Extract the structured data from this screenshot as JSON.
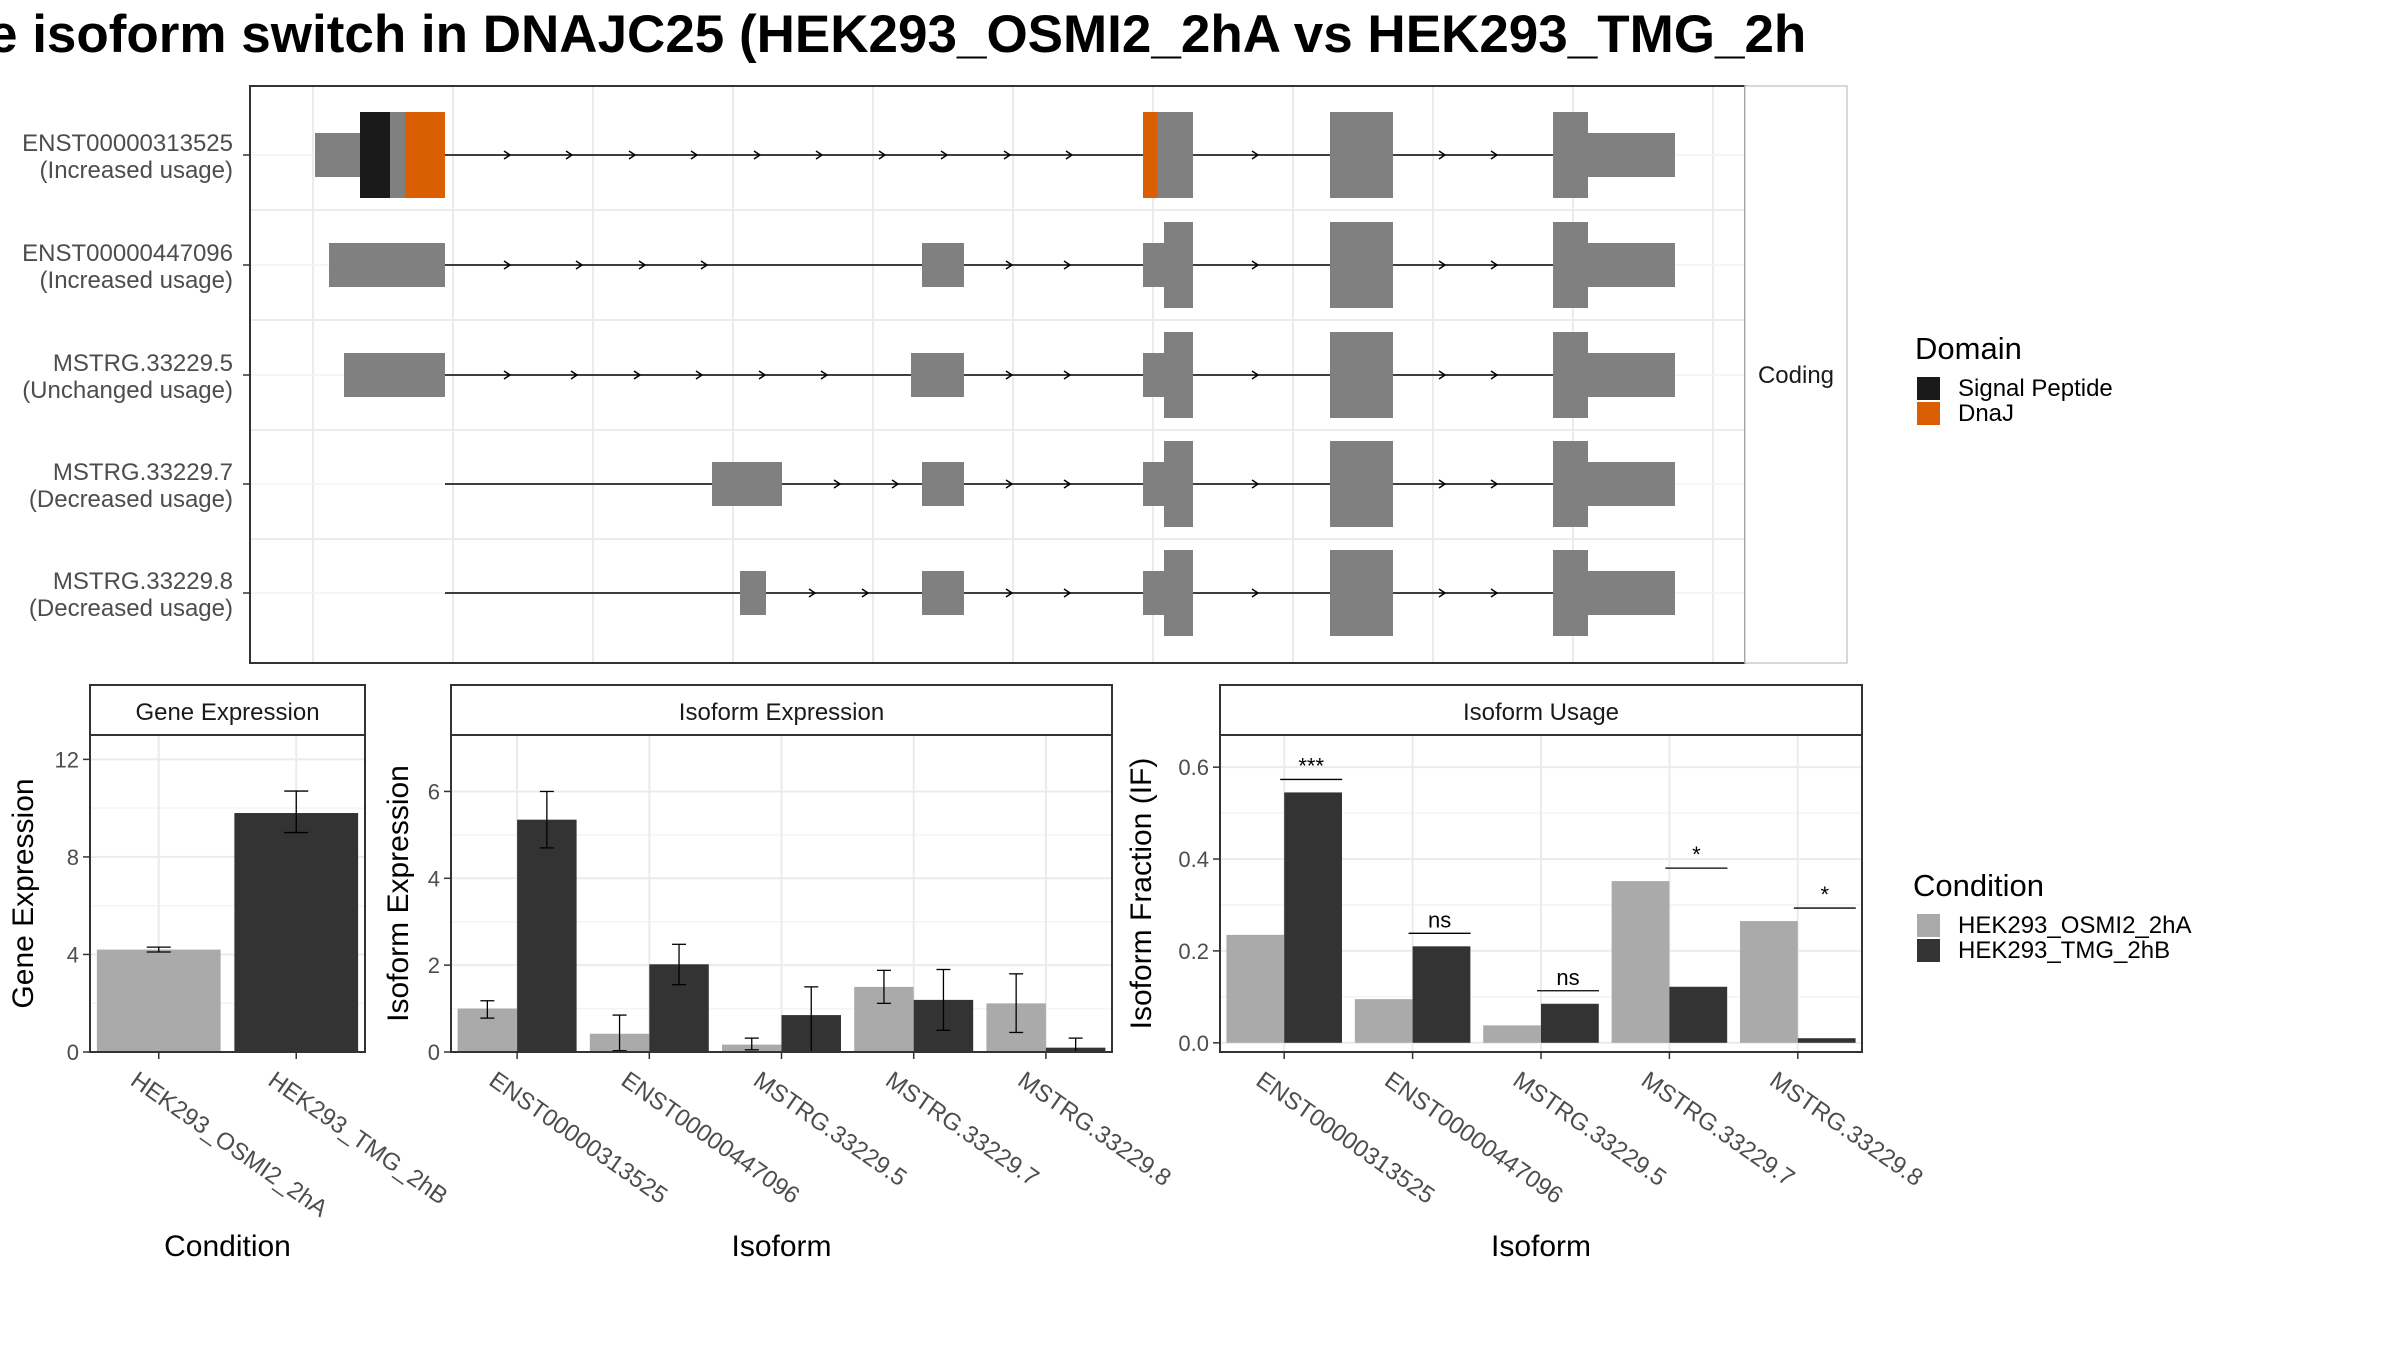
{
  "title": "e isoform switch in DNAJC25 (HEK293_OSMI2_2hA vs HEK293_TMG_2h",
  "colors": {
    "exon": "#808080",
    "signal_peptide": "#1a1a1a",
    "dnaj": "#d95f02",
    "condA": "#aaaaaa",
    "condB": "#333333",
    "grid": "#ebebeb",
    "strip": "#ffffff",
    "panel_border": "#333333"
  },
  "structure": {
    "facet_label": "Coding",
    "isoforms": [
      {
        "id": "ENST00000313525",
        "note": "(Increased usage)"
      },
      {
        "id": "ENST00000447096",
        "note": "(Increased usage)"
      },
      {
        "id": "MSTRG.33229.5",
        "note": "(Unchanged usage)"
      },
      {
        "id": "MSTRG.33229.7",
        "note": "(Decreased usage)"
      },
      {
        "id": "MSTRG.33229.8",
        "note": "(Decreased usage)"
      }
    ]
  },
  "legends": {
    "domain": {
      "title": "Domain",
      "items": [
        "Signal Peptide",
        "DnaJ"
      ]
    },
    "condition": {
      "title": "Condition",
      "items": [
        "HEK293_OSMI2_2hA",
        "HEK293_TMG_2hB"
      ]
    }
  },
  "chart_data": [
    {
      "type": "bar",
      "title": "Gene Expression",
      "xlabel": "Condition",
      "ylabel": "Gene Expression",
      "categories": [
        "HEK293_OSMI2_2hA",
        "HEK293_TMG_2hB"
      ],
      "values": [
        4.2,
        9.8
      ],
      "errors": [
        [
          4.1,
          4.3
        ],
        [
          9.0,
          10.7
        ]
      ],
      "ylim": [
        0,
        13
      ],
      "yticks": [
        0,
        4,
        8,
        12
      ]
    },
    {
      "type": "bar",
      "title": "Isoform Expression",
      "xlabel": "Isoform",
      "ylabel": "Isoform Expression",
      "categories": [
        "ENST00000313525",
        "ENST00000447096",
        "MSTRG.33229.5",
        "MSTRG.33229.7",
        "MSTRG.33229.8"
      ],
      "series": [
        {
          "name": "HEK293_OSMI2_2hA",
          "values": [
            1.0,
            0.42,
            0.17,
            1.5,
            1.12
          ],
          "errors": [
            [
              0.78,
              1.18
            ],
            [
              0.03,
              0.85
            ],
            [
              0.05,
              0.32
            ],
            [
              1.12,
              1.88
            ],
            [
              0.45,
              1.8
            ]
          ]
        },
        {
          "name": "HEK293_TMG_2hB",
          "values": [
            5.35,
            2.02,
            0.85,
            1.2,
            0.1
          ],
          "errors": [
            [
              4.7,
              6.0
            ],
            [
              1.55,
              2.48
            ],
            [
              0.0,
              1.5
            ],
            [
              0.5,
              1.9
            ],
            [
              0.0,
              0.32
            ]
          ]
        }
      ],
      "ylim": [
        0,
        7.3
      ],
      "yticks": [
        0,
        2,
        4,
        6
      ]
    },
    {
      "type": "bar",
      "title": "Isoform Usage",
      "xlabel": "Isoform",
      "ylabel": "Isoform Fraction (IF)",
      "categories": [
        "ENST00000313525",
        "ENST00000447096",
        "MSTRG.33229.5",
        "MSTRG.33229.7",
        "MSTRG.33229.8"
      ],
      "series": [
        {
          "name": "HEK293_OSMI2_2hA",
          "values": [
            0.235,
            0.095,
            0.038,
            0.352,
            0.265
          ]
        },
        {
          "name": "HEK293_TMG_2hB",
          "values": [
            0.545,
            0.21,
            0.085,
            0.122,
            0.01
          ]
        }
      ],
      "significance": [
        "***",
        "ns",
        "ns",
        "*",
        "*"
      ],
      "ylim": [
        -0.02,
        0.67
      ],
      "yticks": [
        "0.0",
        "0.2",
        "0.4",
        "0.6"
      ]
    }
  ]
}
